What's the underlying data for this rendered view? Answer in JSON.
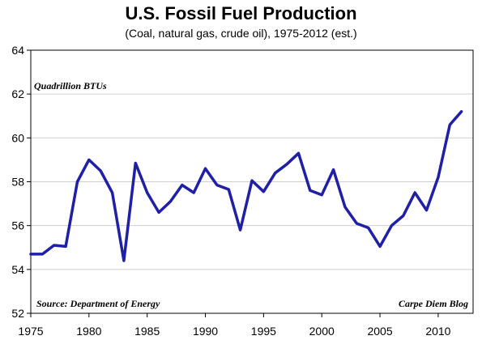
{
  "chart_data": {
    "type": "line",
    "title": "U.S. Fossil Fuel Production",
    "subtitle": "(Coal, natural gas, crude oil), 1975-2012 (est.)",
    "ylabel": "Quadrillion BTUs",
    "xlabel": "",
    "ylim": [
      52,
      64
    ],
    "xlim": [
      1975,
      2013
    ],
    "yticks": [
      52,
      54,
      56,
      58,
      60,
      62,
      64
    ],
    "xticks": [
      1975,
      1980,
      1985,
      1990,
      1995,
      2000,
      2005,
      2010
    ],
    "grid": "horizontal",
    "line_color": "#1f1fa8",
    "source": "Source: Department of Energy",
    "credit": "Carpe Diem Blog",
    "series": [
      {
        "x": [
          1975,
          1976,
          1977,
          1978,
          1979,
          1980,
          1981,
          1982,
          1983,
          1984,
          1985,
          1986,
          1987,
          1988,
          1989,
          1990,
          1991,
          1992,
          1993,
          1994,
          1995,
          1996,
          1997,
          1998,
          1999,
          2000,
          2001,
          2002,
          2003,
          2004,
          2005,
          2006,
          2007,
          2008,
          2009,
          2010,
          2011,
          2012
        ],
        "values": [
          54.7,
          54.7,
          55.1,
          55.05,
          58.0,
          59.0,
          58.5,
          57.5,
          54.4,
          58.85,
          57.5,
          56.6,
          57.1,
          57.85,
          57.5,
          58.6,
          57.85,
          57.65,
          55.8,
          58.05,
          57.55,
          58.4,
          58.8,
          59.3,
          57.6,
          57.4,
          58.55,
          56.85,
          56.1,
          55.9,
          55.05,
          56.0,
          56.45,
          57.5,
          56.7,
          58.2,
          60.6,
          61.2
        ]
      }
    ]
  }
}
